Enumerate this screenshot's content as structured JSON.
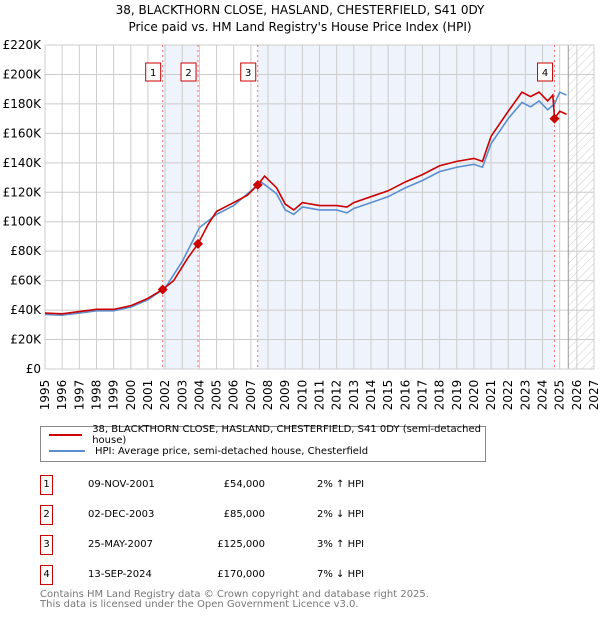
{
  "title": "38, BLACKTHORN CLOSE, HASLAND, CHESTERFIELD, S41 0DY",
  "subtitle": "Price paid vs. HM Land Registry's House Price Index (HPI)",
  "chart_data": {
    "type": "line",
    "ylim": [
      0,
      220000
    ],
    "xlim": [
      1995,
      2027
    ],
    "yticks": [
      0,
      20000,
      40000,
      60000,
      80000,
      100000,
      120000,
      140000,
      160000,
      180000,
      200000,
      220000
    ],
    "ytick_labels": [
      "£0",
      "£20K",
      "£40K",
      "£60K",
      "£80K",
      "£100K",
      "£120K",
      "£140K",
      "£160K",
      "£180K",
      "£200K",
      "£220K"
    ],
    "xticks": [
      "1995",
      "1996",
      "1997",
      "1998",
      "1999",
      "2000",
      "2001",
      "2002",
      "2003",
      "2004",
      "2005",
      "2006",
      "2007",
      "2008",
      "2009",
      "2010",
      "2011",
      "2012",
      "2013",
      "2014",
      "2015",
      "2016",
      "2017",
      "2018",
      "2019",
      "2020",
      "2021",
      "2022",
      "2023",
      "2024",
      "2025",
      "2026",
      "2027"
    ],
    "grid": true,
    "forecast_start": 2025.5,
    "series": [
      {
        "name": "38, BLACKTHORN CLOSE, HASLAND, CHESTERFIELD, S41 0DY (semi-detached house)",
        "color": "#cc0000",
        "x": [
          1995,
          1996,
          1997,
          1998,
          1999,
          2000,
          2001,
          2001.86,
          2002.5,
          2003.3,
          2003.92,
          2004.5,
          2005,
          2006,
          2006.8,
          2007.4,
          2007.8,
          2008.5,
          2009,
          2009.5,
          2010,
          2011,
          2012,
          2012.6,
          2013,
          2014,
          2015,
          2016,
          2017,
          2018,
          2019,
          2020,
          2020.5,
          2021,
          2022,
          2022.8,
          2023.3,
          2023.8,
          2024.3,
          2024.6,
          2024.7,
          2025,
          2025.4
        ],
        "y": [
          38000,
          37500,
          39000,
          40500,
          40500,
          43000,
          48000,
          54000,
          60000,
          75000,
          85000,
          98000,
          107000,
          113000,
          118000,
          125000,
          131000,
          123000,
          112000,
          108000,
          113000,
          111000,
          111000,
          110000,
          113000,
          117000,
          121000,
          127000,
          132000,
          138000,
          141000,
          143000,
          141000,
          158000,
          175000,
          188000,
          185000,
          188000,
          182000,
          186000,
          170000,
          175000,
          173000
        ]
      },
      {
        "name": "HPI: Average price, semi-detached house, Chesterfield",
        "color": "#5b8fd0",
        "x": [
          1995,
          1996,
          1997,
          1998,
          1999,
          2000,
          2001,
          2002,
          2003,
          2004,
          2005,
          2006,
          2007,
          2007.6,
          2008.5,
          2009,
          2009.5,
          2010,
          2011,
          2012,
          2012.6,
          2013,
          2014,
          2015,
          2016,
          2017,
          2018,
          2019,
          2020,
          2020.5,
          2021,
          2022,
          2022.8,
          2023.3,
          2023.8,
          2024.3,
          2024.7,
          2025,
          2025.4
        ],
        "y": [
          37000,
          36500,
          38000,
          39500,
          39500,
          42000,
          47000,
          55000,
          73000,
          96000,
          105000,
          111000,
          121000,
          127000,
          119000,
          108000,
          105000,
          110000,
          108000,
          108000,
          106000,
          109000,
          113000,
          117000,
          123000,
          128000,
          134000,
          137000,
          139000,
          137000,
          153000,
          170000,
          181000,
          178000,
          182000,
          176000,
          180000,
          188000,
          186000
        ]
      }
    ],
    "sales": [
      {
        "n": "1",
        "x": 2001.86,
        "date": "09-NOV-2001",
        "price_value": 54000,
        "price": "£54,000",
        "hpi": "2% ↑ HPI"
      },
      {
        "n": "2",
        "x": 2003.92,
        "date": "02-DEC-2003",
        "price_value": 85000,
        "price": "£85,000",
        "hpi": "2% ↓ HPI"
      },
      {
        "n": "3",
        "x": 2007.4,
        "date": "25-MAY-2007",
        "price_value": 125000,
        "price": "£125,000",
        "hpi": "3% ↑ HPI"
      },
      {
        "n": "4",
        "x": 2024.7,
        "date": "13-SEP-2024",
        "price_value": 170000,
        "price": "£170,000",
        "hpi": "7% ↓ HPI"
      }
    ]
  },
  "footer1": "Contains HM Land Registry data © Crown copyright and database right 2025.",
  "footer2": "This data is licensed under the Open Government Licence v3.0."
}
